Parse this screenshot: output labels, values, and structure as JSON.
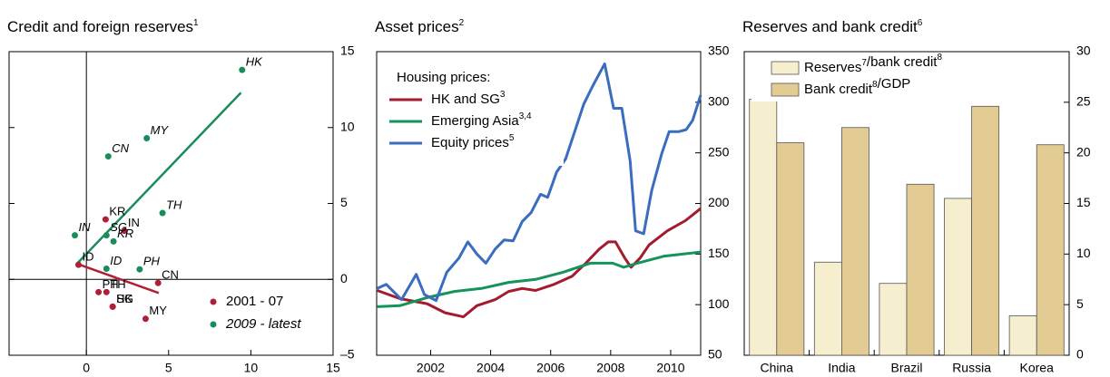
{
  "chart_data": [
    {
      "type": "scatter",
      "title": "Credit and foreign reserves",
      "title_sup": "1",
      "xlim": [
        -4.7,
        15
      ],
      "xticks": [
        0,
        5,
        10,
        15
      ],
      "ylim": [
        -5,
        15
      ],
      "yticks": [
        {
          "value": -5,
          "label": "–5"
        },
        0,
        5,
        10,
        15
      ],
      "zero_lines": true,
      "legend": "lower right",
      "series": [
        {
          "name": "2001 - 07",
          "color": "#b01f35",
          "x": [
            1.17,
            2.3,
            -0.48,
            4.36,
            0.74,
            1.22,
            1.6,
            1.6,
            3.6
          ],
          "y": [
            3.95,
            3.2,
            0.96,
            -0.24,
            -0.84,
            -0.84,
            -1.8,
            -1.8,
            -2.6
          ],
          "labels": [
            "KR",
            "IN",
            "ID",
            "CN",
            "PH",
            "TH",
            "SG",
            "HK",
            "MY"
          ],
          "trend": {
            "x": [
              -0.5,
              4.4
            ],
            "y": [
              1.0,
              -0.9
            ]
          }
        },
        {
          "name": "2009 - latest",
          "italic": true,
          "color": "#1a8c5b",
          "x": [
            9.47,
            3.67,
            1.33,
            4.63,
            -0.7,
            1.22,
            1.65,
            1.22,
            3.24
          ],
          "y": [
            13.8,
            9.3,
            8.1,
            4.37,
            2.9,
            2.9,
            2.5,
            0.7,
            0.66
          ],
          "labels": [
            "HK",
            "MY",
            "CN",
            "TH",
            "IN",
            "SG",
            "KR",
            "ID",
            "PH"
          ],
          "trend": {
            "x": [
              -0.6,
              9.4
            ],
            "y": [
              1.0,
              12.3
            ]
          }
        }
      ]
    },
    {
      "type": "line",
      "title": "Asset prices",
      "title_sup": "2",
      "xlim": [
        2000.2,
        2011
      ],
      "xticks": [
        2002,
        2004,
        2006,
        2008,
        2010
      ],
      "ylim": [
        50,
        350
      ],
      "yticks": [
        50,
        100,
        150,
        200,
        250,
        300,
        350
      ],
      "legend": "upper left",
      "legend_title": "Housing prices:",
      "series": [
        {
          "name": "HK and SG",
          "name_sup": "3",
          "color": "#a31b2d",
          "x": [
            2000.22,
            2000.97,
            2001.88,
            2002.48,
            2003.09,
            2003.54,
            2004.15,
            2004.6,
            2005.05,
            2005.5,
            2006.11,
            2006.71,
            2007.17,
            2007.62,
            2007.92,
            2008.16,
            2008.47,
            2008.68,
            2008.98,
            2009.28,
            2009.89,
            2010.49,
            2011.0
          ],
          "values": [
            114,
            106,
            101,
            92,
            88,
            99,
            105,
            113,
            116,
            114,
            120,
            128,
            141,
            155,
            162,
            162,
            146,
            137,
            146,
            159,
            173,
            183,
            195
          ]
        },
        {
          "name": "Emerging Asia",
          "name_sup": "3,4",
          "color": "#14945a",
          "x": [
            2000.22,
            2000.97,
            2001.88,
            2002.79,
            2003.69,
            2004.6,
            2005.5,
            2006.41,
            2007.32,
            2008.07,
            2008.43,
            2008.89,
            2009.79,
            2011.0
          ],
          "values": [
            98,
            99,
            107,
            113,
            116,
            122,
            125,
            132,
            141,
            141,
            137,
            141,
            148,
            152
          ]
        },
        {
          "name": "Equity prices",
          "name_sup": "5",
          "color": "#3a6dbf",
          "x": [
            2000.22,
            2000.52,
            2001.03,
            2001.52,
            2001.79,
            2002.18,
            2002.54,
            2002.94,
            2003.24,
            2003.54,
            2003.84,
            2004.15,
            2004.45,
            2004.75,
            2005.05,
            2005.35,
            2005.66,
            2005.9,
            2006.2,
            2006.5,
            2006.8,
            2007.1,
            2007.4,
            2007.8,
            2008.1,
            2008.37,
            2008.65,
            2008.83,
            2009.1,
            2009.37,
            2009.7,
            2009.95,
            2010.28,
            2010.52,
            2010.73,
            2011.0
          ],
          "values": [
            116,
            120,
            105,
            130,
            110,
            104,
            132,
            146,
            162,
            150,
            141,
            155,
            164,
            163,
            182,
            191,
            209,
            206,
            231,
            244,
            271,
            298,
            316,
            338,
            294,
            294,
            242,
            173,
            170,
            213,
            249,
            271,
            271,
            273,
            282,
            307
          ]
        }
      ]
    },
    {
      "type": "bar",
      "title": "Reserves and bank credit",
      "title_sup": "6",
      "categories": [
        "China",
        "India",
        "Brazil",
        "Russia",
        "Korea"
      ],
      "ylim": [
        0,
        30
      ],
      "yticks": [
        0,
        5,
        10,
        15,
        20,
        25,
        30
      ],
      "legend": "upper left",
      "series": [
        {
          "name": "Reserves",
          "name_sup": "7",
          "name_cont": "/bank credit",
          "name_cont_sup": "8",
          "color": "#f6efcf",
          "values": [
            25.3,
            9.2,
            7.1,
            15.5,
            3.9
          ]
        },
        {
          "name": "Bank credit",
          "name_sup": "8",
          "name_cont": "/GDP",
          "color": "#e2cc94",
          "values": [
            21.0,
            22.5,
            16.9,
            24.6,
            20.8
          ]
        }
      ]
    }
  ]
}
